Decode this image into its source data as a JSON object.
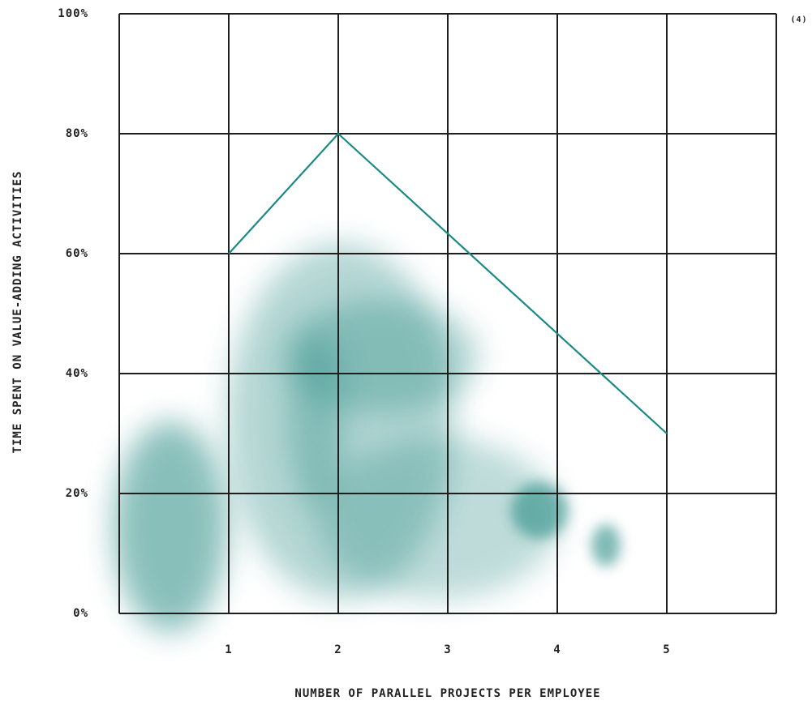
{
  "chart_data": {
    "type": "line",
    "x_label": "NUMBER OF PARALLEL PROJECTS PER EMPLOYEE",
    "y_label": "TIME SPENT ON VALUE-ADDING ACTIVITIES",
    "annotation": "(4)",
    "x": [
      1,
      2,
      5
    ],
    "series": [
      {
        "color": "#1a8a84",
        "values": [
          60,
          80,
          30
        ]
      }
    ],
    "xlim": [
      0,
      6
    ],
    "xticks": [
      1,
      2,
      3,
      4,
      5
    ],
    "ylim": [
      0,
      100
    ],
    "yticks": [
      {
        "value": 0,
        "label": "0%"
      },
      {
        "value": 20,
        "label": "20%"
      },
      {
        "value": 40,
        "label": "40%"
      },
      {
        "value": 60,
        "label": "60%"
      },
      {
        "value": 80,
        "label": "80%"
      },
      {
        "value": 100,
        "label": "100%"
      }
    ],
    "grid": true
  }
}
